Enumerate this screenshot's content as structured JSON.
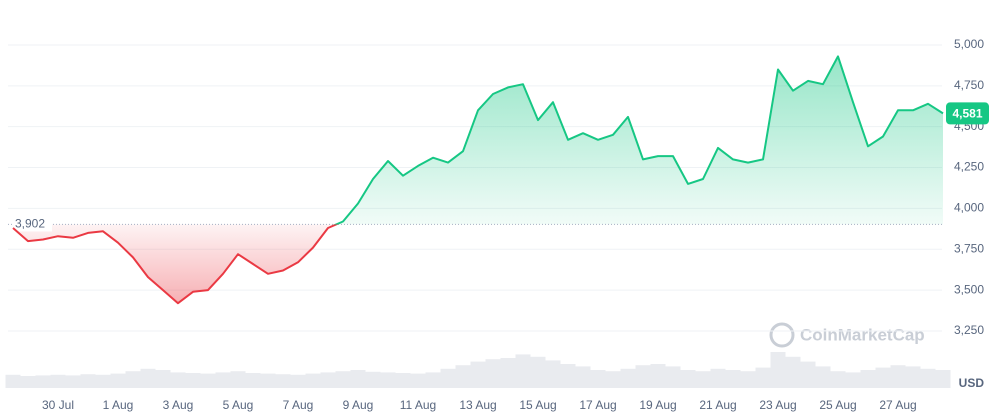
{
  "chart_data": {
    "type": "line",
    "currency": "USD",
    "watermark": "CoinMarketCap",
    "values": [
      3880,
      3800,
      3810,
      3830,
      3820,
      3850,
      3860,
      3790,
      3700,
      3580,
      3500,
      3420,
      3490,
      3500,
      3600,
      3720,
      3660,
      3600,
      3620,
      3670,
      3760,
      3880,
      3920,
      4030,
      4180,
      4290,
      4200,
      4260,
      4310,
      4280,
      4350,
      4600,
      4700,
      4740,
      4760,
      4540,
      4650,
      4420,
      4460,
      4420,
      4450,
      4560,
      4300,
      4320,
      4320,
      4150,
      4180,
      4370,
      4300,
      4280,
      4300,
      4850,
      4720,
      4780,
      4760,
      4930,
      4650,
      4380,
      4440,
      4600,
      4600,
      4640,
      4581
    ],
    "volume": [
      22,
      20,
      21,
      22,
      21,
      23,
      22,
      24,
      28,
      32,
      30,
      26,
      25,
      24,
      26,
      28,
      25,
      24,
      23,
      22,
      24,
      26,
      28,
      30,
      27,
      26,
      25,
      24,
      26,
      32,
      38,
      44,
      48,
      50,
      56,
      52,
      46,
      40,
      36,
      30,
      28,
      32,
      38,
      40,
      36,
      30,
      28,
      32,
      30,
      28,
      34,
      60,
      52,
      44,
      36,
      28,
      26,
      30,
      34,
      38,
      36,
      32,
      30
    ],
    "volume_lim": [
      0,
      100
    ],
    "xlim": [
      0,
      62
    ],
    "xticks": [
      {
        "value": 3,
        "label": "30 Jul"
      },
      {
        "value": 7,
        "label": "1 Aug"
      },
      {
        "value": 11,
        "label": "3 Aug"
      },
      {
        "value": 15,
        "label": "5 Aug"
      },
      {
        "value": 19,
        "label": "7 Aug"
      },
      {
        "value": 23,
        "label": "9 Aug"
      },
      {
        "value": 27,
        "label": "11 Aug"
      },
      {
        "value": 31,
        "label": "13 Aug"
      },
      {
        "value": 35,
        "label": "15 Aug"
      },
      {
        "value": 39,
        "label": "17 Aug"
      },
      {
        "value": 43,
        "label": "19 Aug"
      },
      {
        "value": 47,
        "label": "21 Aug"
      },
      {
        "value": 51,
        "label": "23 Aug"
      },
      {
        "value": 55,
        "label": "25 Aug"
      },
      {
        "value": 59,
        "label": "27 Aug"
      }
    ],
    "ylim": [
      2889,
      5275
    ],
    "yticks": [
      {
        "value": 3250,
        "label": "3,250"
      },
      {
        "value": 3500,
        "label": "3,500"
      },
      {
        "value": 3750,
        "label": "3,750"
      },
      {
        "value": 4000,
        "label": "4,000"
      },
      {
        "value": 4250,
        "label": "4,250"
      },
      {
        "value": 4500,
        "label": "4,500"
      },
      {
        "value": 4750,
        "label": "4,750"
      },
      {
        "value": 5000,
        "label": "5,000"
      }
    ],
    "grid": true,
    "baseline": {
      "value": 3902,
      "label": "3,902"
    },
    "current": {
      "value": 4581,
      "label": "4,581"
    },
    "up_color": "#16c784",
    "down_color": "#ea3943"
  }
}
